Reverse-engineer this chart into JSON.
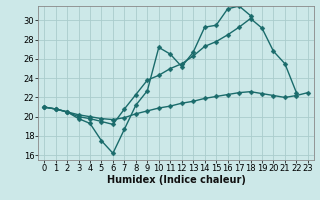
{
  "xlabel": "Humidex (Indice chaleur)",
  "background_color": "#cce8e8",
  "grid_color": "#aacccc",
  "line_color": "#1a6b6b",
  "xlim": [
    -0.5,
    23.5
  ],
  "ylim": [
    15.5,
    31.5
  ],
  "xticks": [
    0,
    1,
    2,
    3,
    4,
    5,
    6,
    7,
    8,
    9,
    10,
    11,
    12,
    13,
    14,
    15,
    16,
    17,
    18,
    19,
    20,
    21,
    22,
    23
  ],
  "yticks": [
    16,
    18,
    20,
    22,
    24,
    26,
    28,
    30
  ],
  "line1_y": [
    21.0,
    20.8,
    20.5,
    19.8,
    19.3,
    17.5,
    16.2,
    18.7,
    21.2,
    22.7,
    27.2,
    26.5,
    25.2,
    26.7,
    29.3,
    29.5,
    31.2,
    31.5,
    30.5,
    null,
    null,
    null,
    null,
    null
  ],
  "line2_y": [
    21.0,
    20.8,
    20.5,
    20.0,
    19.8,
    19.5,
    19.2,
    20.8,
    22.3,
    23.8,
    24.3,
    25.0,
    25.5,
    26.3,
    27.3,
    27.8,
    28.5,
    29.3,
    30.2,
    29.2,
    26.8,
    25.5,
    22.5,
    null
  ],
  "line3_y": [
    21.0,
    20.8,
    20.5,
    20.2,
    20.0,
    19.8,
    19.7,
    19.9,
    20.3,
    20.6,
    20.9,
    21.1,
    21.4,
    21.6,
    21.9,
    22.1,
    22.3,
    22.5,
    22.6,
    22.4,
    22.2,
    22.0,
    22.2,
    22.5
  ],
  "marker": "D",
  "markersize": 2.5,
  "linewidth": 1.0,
  "xlabel_fontsize": 7,
  "tick_fontsize": 6
}
